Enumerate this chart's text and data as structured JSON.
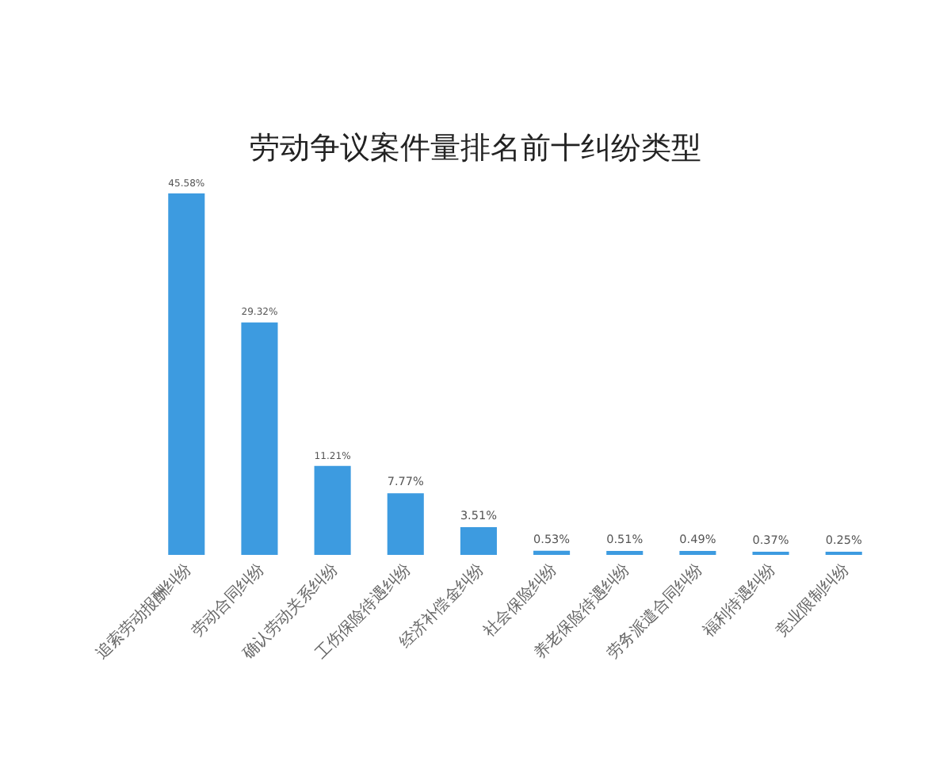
{
  "chart_data": {
    "type": "bar",
    "title": "劳动争议案件量排名前十纠纷类型",
    "categories": [
      "追索劳动报酬纠纷",
      "劳动合同纠纷",
      "确认劳动关系纠纷",
      "工伤保险待遇纠纷",
      "经济补偿金纠纷",
      "社会保险纠纷",
      "养老保险待遇纠纷",
      "劳务派遣合同纠纷",
      "福利待遇纠纷",
      "竞业限制纠纷"
    ],
    "values": [
      45.58,
      29.32,
      11.21,
      7.77,
      3.51,
      0.53,
      0.51,
      0.49,
      0.37,
      0.25
    ],
    "value_labels": [
      "45.58%",
      "29.32%",
      "11.21%",
      "7.77%",
      "3.51%",
      "0.53%",
      "0.51%",
      "0.49%",
      "0.37%",
      "0.25%"
    ],
    "color": "#3d9be0"
  }
}
